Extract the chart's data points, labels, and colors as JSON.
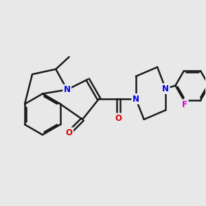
{
  "bg_color": "#e8e8e8",
  "bond_color": "#1a1a1a",
  "bond_width": 1.8,
  "N_color": "#0000ee",
  "O_color": "#dd0000",
  "F_color": "#cc00cc",
  "figsize": [
    3.0,
    3.0
  ],
  "dpi": 100,
  "xlim": [
    0,
    10
  ],
  "ylim": [
    0,
    10
  ]
}
